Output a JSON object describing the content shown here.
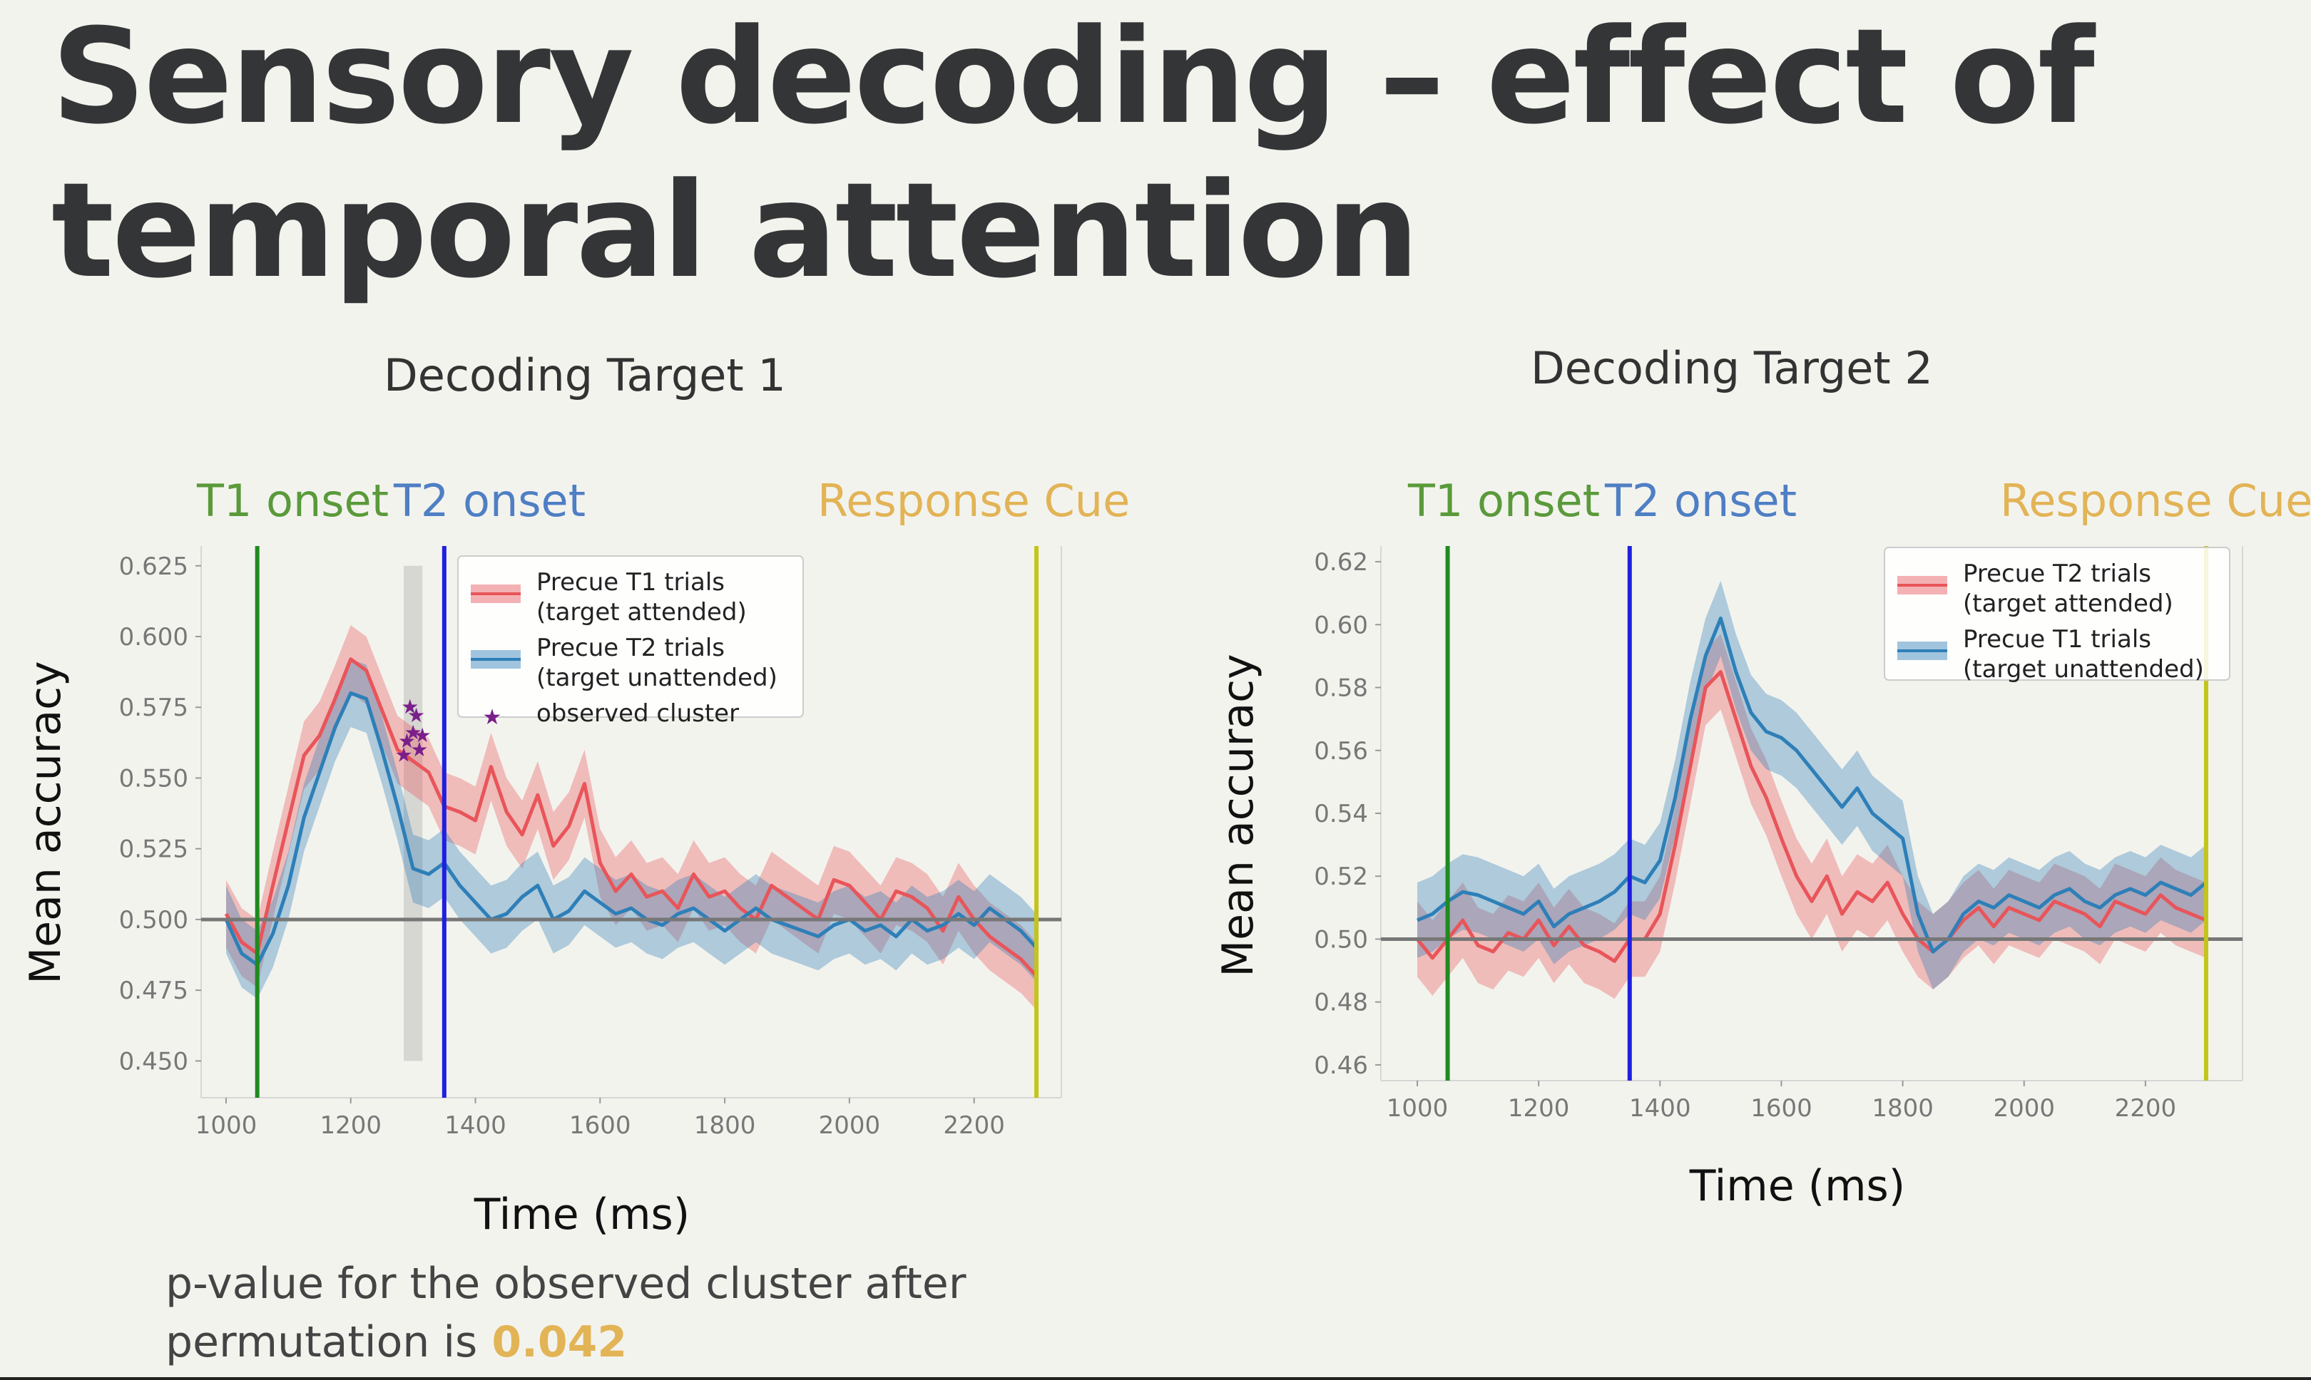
{
  "slide": {
    "title_line1": "Sensory decoding – effect of",
    "title_line2": "temporal attention",
    "footnote_line1": "p-value for the observed cluster after",
    "footnote_line2": "permutation is",
    "p_value": "0.042",
    "colors": {
      "t1_onset": "#5a9a3a",
      "t2_onset": "#4f7fc4",
      "response_cue": "#e2b456",
      "p_value": "#e2b456"
    }
  },
  "chart_data": [
    {
      "type": "line",
      "title": "Decoding Target 1",
      "xlabel": "Time (ms)",
      "ylabel": "Mean  accuracy",
      "xlim": [
        960,
        2340
      ],
      "ylim": [
        0.437,
        0.632
      ],
      "xticks": [
        1000,
        1200,
        1400,
        1600,
        1800,
        2000,
        2200
      ],
      "yticks": [
        0.45,
        0.475,
        0.5,
        0.525,
        0.55,
        0.575,
        0.6,
        0.625
      ],
      "ytick_labels": [
        "0.450",
        "0.475",
        "0.500",
        "0.525",
        "0.550",
        "0.575",
        "0.600",
        "0.625"
      ],
      "chance_level": 0.5,
      "event_labels": [
        {
          "label": "T1 onset",
          "x": 1050,
          "color": "#5a9a3a"
        },
        {
          "label": "T2 onset",
          "x": 1350,
          "color": "#4f7fc4"
        },
        {
          "label": "Response Cue",
          "x": 2300,
          "color": "#e2b456"
        }
      ],
      "vlines": [
        {
          "x": 1050,
          "color": "#1f8a1f"
        },
        {
          "x": 1350,
          "color": "#1f1fe0"
        },
        {
          "x": 2300,
          "color": "#c4c41a"
        }
      ],
      "shaded_region": {
        "x": [
          1285,
          1315
        ],
        "y": [
          0.45,
          0.625
        ]
      },
      "legend_position": "top-right",
      "legend": [
        "Precue T1 trials\n(target attended)",
        "Precue T2 trials\n(target unattended)",
        "observed cluster"
      ],
      "series": [
        {
          "name": "Precue T1 trials (target attended)",
          "color": "#e8555a",
          "band": 0.012,
          "x": [
            1000,
            1025,
            1050,
            1075,
            1100,
            1125,
            1150,
            1175,
            1200,
            1225,
            1250,
            1275,
            1300,
            1325,
            1350,
            1375,
            1400,
            1425,
            1450,
            1475,
            1500,
            1525,
            1550,
            1575,
            1600,
            1625,
            1650,
            1675,
            1700,
            1725,
            1750,
            1775,
            1800,
            1825,
            1850,
            1875,
            1900,
            1925,
            1950,
            1975,
            2000,
            2025,
            2050,
            2075,
            2100,
            2125,
            2150,
            2175,
            2200,
            2225,
            2250,
            2275,
            2300
          ],
          "y": [
            0.502,
            0.492,
            0.488,
            0.512,
            0.535,
            0.558,
            0.565,
            0.578,
            0.592,
            0.588,
            0.574,
            0.56,
            0.556,
            0.552,
            0.54,
            0.538,
            0.535,
            0.554,
            0.538,
            0.53,
            0.544,
            0.526,
            0.533,
            0.548,
            0.52,
            0.51,
            0.516,
            0.508,
            0.51,
            0.504,
            0.516,
            0.508,
            0.51,
            0.504,
            0.5,
            0.512,
            0.508,
            0.504,
            0.5,
            0.514,
            0.512,
            0.506,
            0.5,
            0.51,
            0.508,
            0.504,
            0.496,
            0.508,
            0.5,
            0.494,
            0.49,
            0.486,
            0.48
          ]
        },
        {
          "name": "Precue T2 trials (target unattended)",
          "color": "#2e7fb8",
          "band": 0.012,
          "x": [
            1000,
            1025,
            1050,
            1075,
            1100,
            1125,
            1150,
            1175,
            1200,
            1225,
            1250,
            1275,
            1300,
            1325,
            1350,
            1375,
            1400,
            1425,
            1450,
            1475,
            1500,
            1525,
            1550,
            1575,
            1600,
            1625,
            1650,
            1675,
            1700,
            1725,
            1750,
            1775,
            1800,
            1825,
            1850,
            1875,
            1900,
            1925,
            1950,
            1975,
            2000,
            2025,
            2050,
            2075,
            2100,
            2125,
            2150,
            2175,
            2200,
            2225,
            2250,
            2275,
            2300
          ],
          "y": [
            0.5,
            0.488,
            0.484,
            0.495,
            0.512,
            0.536,
            0.552,
            0.568,
            0.58,
            0.578,
            0.56,
            0.54,
            0.518,
            0.516,
            0.52,
            0.512,
            0.506,
            0.5,
            0.502,
            0.508,
            0.512,
            0.5,
            0.503,
            0.51,
            0.506,
            0.502,
            0.504,
            0.5,
            0.498,
            0.502,
            0.504,
            0.5,
            0.496,
            0.5,
            0.504,
            0.5,
            0.498,
            0.496,
            0.494,
            0.498,
            0.5,
            0.496,
            0.498,
            0.494,
            0.5,
            0.496,
            0.498,
            0.502,
            0.498,
            0.504,
            0.5,
            0.496,
            0.49
          ]
        },
        {
          "name": "observed cluster",
          "type": "scatter",
          "color": "#7a1f8a",
          "x": [
            1285,
            1290,
            1295,
            1300,
            1305,
            1310,
            1315
          ],
          "y": [
            0.558,
            0.563,
            0.575,
            0.566,
            0.572,
            0.56,
            0.565
          ]
        }
      ]
    },
    {
      "type": "line",
      "title": "Decoding Target 2",
      "xlabel": "Time (ms)",
      "ylabel": "Mean  accuracy",
      "xlim": [
        940,
        2360
      ],
      "ylim": [
        0.455,
        0.625
      ],
      "xticks": [
        1000,
        1200,
        1400,
        1600,
        1800,
        2000,
        2200
      ],
      "yticks": [
        0.46,
        0.48,
        0.5,
        0.52,
        0.54,
        0.56,
        0.58,
        0.6,
        0.62
      ],
      "ytick_labels": [
        "0.46",
        "0.48",
        "0.50",
        "0.52",
        "0.54",
        "0.56",
        "0.58",
        "0.60",
        "0.62"
      ],
      "chance_level": 0.5,
      "event_labels": [
        {
          "label": "T1 onset",
          "x": 1050,
          "color": "#5a9a3a"
        },
        {
          "label": "T2 onset",
          "x": 1350,
          "color": "#4f7fc4"
        },
        {
          "label": "Response Cue",
          "x": 2300,
          "color": "#e2b456"
        }
      ],
      "vlines": [
        {
          "x": 1050,
          "color": "#1f8a1f"
        },
        {
          "x": 1350,
          "color": "#1f1fe0"
        },
        {
          "x": 2300,
          "color": "#c4c41a"
        }
      ],
      "legend_position": "top-right",
      "legend": [
        "Precue T2 trials\n(target attended)",
        "Precue T1 trials\n(target unattended)"
      ],
      "series": [
        {
          "name": "Precue T2 trials (target attended)",
          "color": "#e8555a",
          "band": 0.012,
          "x": [
            1000,
            1025,
            1050,
            1075,
            1100,
            1125,
            1150,
            1175,
            1200,
            1225,
            1250,
            1275,
            1300,
            1325,
            1350,
            1375,
            1400,
            1425,
            1450,
            1475,
            1500,
            1525,
            1550,
            1575,
            1600,
            1625,
            1650,
            1675,
            1700,
            1725,
            1750,
            1775,
            1800,
            1825,
            1850,
            1875,
            1900,
            1925,
            1950,
            1975,
            2000,
            2025,
            2050,
            2075,
            2100,
            2125,
            2150,
            2175,
            2200,
            2225,
            2250,
            2275,
            2300
          ],
          "y": [
            0.5,
            0.494,
            0.5,
            0.506,
            0.498,
            0.496,
            0.502,
            0.5,
            0.506,
            0.498,
            0.504,
            0.498,
            0.496,
            0.493,
            0.5,
            0.5,
            0.508,
            0.53,
            0.555,
            0.58,
            0.585,
            0.57,
            0.555,
            0.545,
            0.532,
            0.52,
            0.512,
            0.52,
            0.508,
            0.515,
            0.512,
            0.518,
            0.508,
            0.5,
            0.496,
            0.5,
            0.506,
            0.51,
            0.504,
            0.51,
            0.508,
            0.506,
            0.512,
            0.51,
            0.508,
            0.504,
            0.512,
            0.51,
            0.508,
            0.514,
            0.51,
            0.508,
            0.506
          ]
        },
        {
          "name": "Precue T1 trials (target unattended)",
          "color": "#2e7fb8",
          "band": 0.012,
          "x": [
            1000,
            1025,
            1050,
            1075,
            1100,
            1125,
            1150,
            1175,
            1200,
            1225,
            1250,
            1275,
            1300,
            1325,
            1350,
            1375,
            1400,
            1425,
            1450,
            1475,
            1500,
            1525,
            1550,
            1575,
            1600,
            1625,
            1650,
            1675,
            1700,
            1725,
            1750,
            1775,
            1800,
            1825,
            1850,
            1875,
            1900,
            1925,
            1950,
            1975,
            2000,
            2025,
            2050,
            2075,
            2100,
            2125,
            2150,
            2175,
            2200,
            2225,
            2250,
            2275,
            2300
          ],
          "y": [
            0.506,
            0.508,
            0.512,
            0.515,
            0.514,
            0.512,
            0.51,
            0.508,
            0.512,
            0.504,
            0.508,
            0.51,
            0.512,
            0.515,
            0.52,
            0.518,
            0.525,
            0.545,
            0.57,
            0.59,
            0.602,
            0.585,
            0.572,
            0.566,
            0.564,
            0.56,
            0.554,
            0.548,
            0.542,
            0.548,
            0.54,
            0.536,
            0.532,
            0.508,
            0.496,
            0.5,
            0.508,
            0.512,
            0.51,
            0.514,
            0.512,
            0.51,
            0.514,
            0.516,
            0.512,
            0.51,
            0.514,
            0.516,
            0.514,
            0.518,
            0.516,
            0.514,
            0.518
          ]
        }
      ]
    }
  ]
}
